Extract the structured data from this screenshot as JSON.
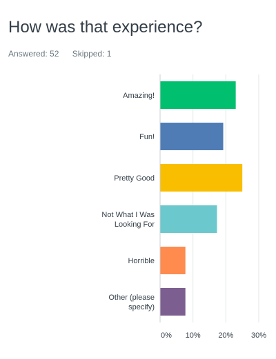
{
  "question": {
    "title": "How was that experience?",
    "answered_label": "Answered: 52",
    "skipped_label": "Skipped: 1"
  },
  "chart_data": {
    "type": "bar",
    "orientation": "horizontal",
    "categories": [
      [
        "Amazing!"
      ],
      [
        "Fun!"
      ],
      [
        "Pretty Good"
      ],
      [
        "Not What I Was",
        "Looking For"
      ],
      [
        "Horrible"
      ],
      [
        "Other (please",
        "specify)"
      ]
    ],
    "values": [
      23,
      19.2,
      25,
      17.3,
      7.7,
      7.7
    ],
    "colors": [
      "#00bf6f",
      "#507cb6",
      "#f9be00",
      "#6bc8cd",
      "#ff8b4f",
      "#7d5e90"
    ],
    "xticks": [
      0,
      10,
      20,
      30
    ],
    "xtick_labels": [
      "0%",
      "10%",
      "20%",
      "30%"
    ],
    "xlim": [
      0,
      30
    ],
    "grid": true,
    "title": "",
    "xlabel": "",
    "ylabel": ""
  }
}
